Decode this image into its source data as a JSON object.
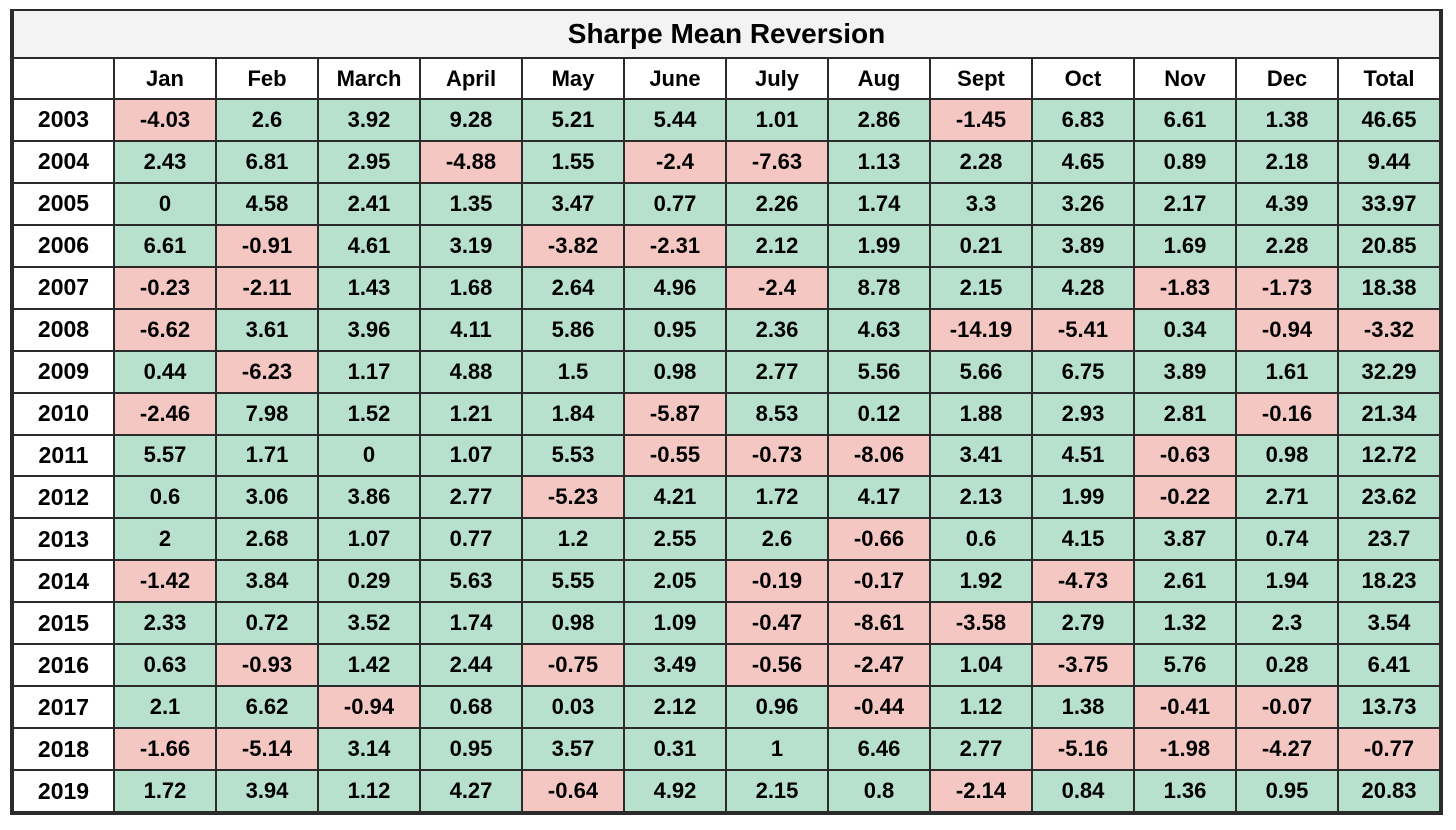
{
  "chart_data": {
    "type": "table",
    "title": "Sharpe Mean Reversion",
    "columns": [
      "",
      "Jan",
      "Feb",
      "March",
      "April",
      "May",
      "June",
      "July",
      "Aug",
      "Sept",
      "Oct",
      "Nov",
      "Dec",
      "Total"
    ],
    "rows": [
      {
        "year": "2003",
        "values": [
          "-4.03",
          "2.6",
          "3.92",
          "9.28",
          "5.21",
          "5.44",
          "1.01",
          "2.86",
          "-1.45",
          "6.83",
          "6.61",
          "1.38",
          "46.65"
        ]
      },
      {
        "year": "2004",
        "values": [
          "2.43",
          "6.81",
          "2.95",
          "-4.88",
          "1.55",
          "-2.4",
          "-7.63",
          "1.13",
          "2.28",
          "4.65",
          "0.89",
          "2.18",
          "9.44"
        ]
      },
      {
        "year": "2005",
        "values": [
          "0",
          "4.58",
          "2.41",
          "1.35",
          "3.47",
          "0.77",
          "2.26",
          "1.74",
          "3.3",
          "3.26",
          "2.17",
          "4.39",
          "33.97"
        ]
      },
      {
        "year": "2006",
        "values": [
          "6.61",
          "-0.91",
          "4.61",
          "3.19",
          "-3.82",
          "-2.31",
          "2.12",
          "1.99",
          "0.21",
          "3.89",
          "1.69",
          "2.28",
          "20.85"
        ]
      },
      {
        "year": "2007",
        "values": [
          "-0.23",
          "-2.11",
          "1.43",
          "1.68",
          "2.64",
          "4.96",
          "-2.4",
          "8.78",
          "2.15",
          "4.28",
          "-1.83",
          "-1.73",
          "18.38"
        ]
      },
      {
        "year": "2008",
        "values": [
          "-6.62",
          "3.61",
          "3.96",
          "4.11",
          "5.86",
          "0.95",
          "2.36",
          "4.63",
          "-14.19",
          "-5.41",
          "0.34",
          "-0.94",
          "-3.32"
        ]
      },
      {
        "year": "2009",
        "values": [
          "0.44",
          "-6.23",
          "1.17",
          "4.88",
          "1.5",
          "0.98",
          "2.77",
          "5.56",
          "5.66",
          "6.75",
          "3.89",
          "1.61",
          "32.29"
        ]
      },
      {
        "year": "2010",
        "values": [
          "-2.46",
          "7.98",
          "1.52",
          "1.21",
          "1.84",
          "-5.87",
          "8.53",
          "0.12",
          "1.88",
          "2.93",
          "2.81",
          "-0.16",
          "21.34"
        ]
      },
      {
        "year": "2011",
        "values": [
          "5.57",
          "1.71",
          "0",
          "1.07",
          "5.53",
          "-0.55",
          "-0.73",
          "-8.06",
          "3.41",
          "4.51",
          "-0.63",
          "0.98",
          "12.72"
        ]
      },
      {
        "year": "2012",
        "values": [
          "0.6",
          "3.06",
          "3.86",
          "2.77",
          "-5.23",
          "4.21",
          "1.72",
          "4.17",
          "2.13",
          "1.99",
          "-0.22",
          "2.71",
          "23.62"
        ]
      },
      {
        "year": "2013",
        "values": [
          "2",
          "2.68",
          "1.07",
          "0.77",
          "1.2",
          "2.55",
          "2.6",
          "-0.66",
          "0.6",
          "4.15",
          "3.87",
          "0.74",
          "23.7"
        ]
      },
      {
        "year": "2014",
        "values": [
          "-1.42",
          "3.84",
          "0.29",
          "5.63",
          "5.55",
          "2.05",
          "-0.19",
          "-0.17",
          "1.92",
          "-4.73",
          "2.61",
          "1.94",
          "18.23"
        ]
      },
      {
        "year": "2015",
        "values": [
          "2.33",
          "0.72",
          "3.52",
          "1.74",
          "0.98",
          "1.09",
          "-0.47",
          "-8.61",
          "-3.58",
          "2.79",
          "1.32",
          "2.3",
          "3.54"
        ]
      },
      {
        "year": "2016",
        "values": [
          "0.63",
          "-0.93",
          "1.42",
          "2.44",
          "-0.75",
          "3.49",
          "-0.56",
          "-2.47",
          "1.04",
          "-3.75",
          "5.76",
          "0.28",
          "6.41"
        ]
      },
      {
        "year": "2017",
        "values": [
          "2.1",
          "6.62",
          "-0.94",
          "0.68",
          "0.03",
          "2.12",
          "0.96",
          "-0.44",
          "1.12",
          "1.38",
          "-0.41",
          "-0.07",
          "13.73"
        ]
      },
      {
        "year": "2018",
        "values": [
          "-1.66",
          "-5.14",
          "3.14",
          "0.95",
          "3.57",
          "0.31",
          "1",
          "6.46",
          "2.77",
          "-5.16",
          "-1.98",
          "-4.27",
          "-0.77"
        ]
      },
      {
        "year": "2019",
        "values": [
          "1.72",
          "3.94",
          "1.12",
          "4.27",
          "-0.64",
          "4.92",
          "2.15",
          "0.8",
          "-2.14",
          "0.84",
          "1.36",
          "0.95",
          "20.83"
        ]
      }
    ],
    "colors": {
      "positive": "#b7e1cd",
      "negative": "#f4c7c3",
      "title_background": "#f3f3f3",
      "border": "#2b2b2b"
    }
  }
}
